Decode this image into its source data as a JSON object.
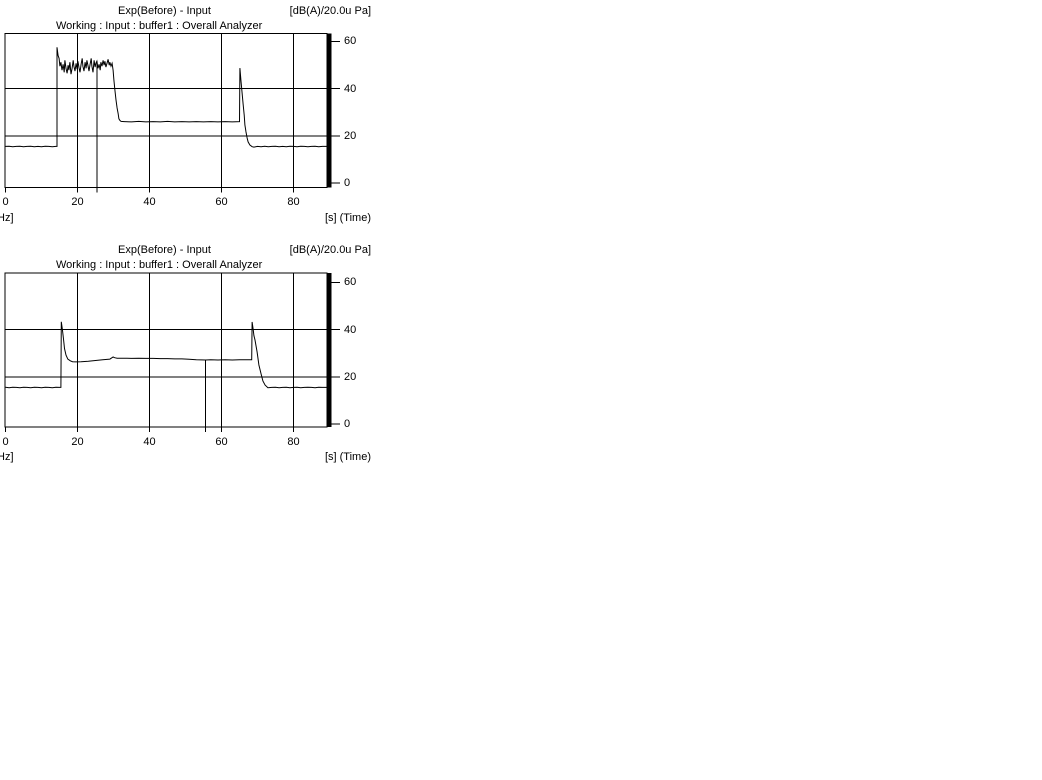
{
  "window": {
    "background": "#ffffff",
    "foreground": "#000000",
    "line_color": "#000000"
  },
  "chart_data": [
    {
      "type": "line",
      "title": "Exp(Before) - Input",
      "unit": "[dB(A)/20.0u Pa]",
      "subtitle": "Working : Input : buffer1 : Overall Analyzer",
      "xlabel": "[s] (Time)",
      "xlabel_left_clipped": "Hz]",
      "xlim": [
        0,
        90
      ],
      "ylim": [
        0,
        60
      ],
      "x_ticks": [
        0,
        20,
        40,
        60,
        80
      ],
      "y_ticks": [
        60,
        40,
        20,
        0
      ],
      "x_tick_labels": [
        "0",
        "20",
        "40",
        "60",
        "80"
      ],
      "y_tick_labels": [
        "60",
        "40",
        "20",
        "0"
      ],
      "grid_x": [
        20,
        40,
        60,
        80
      ],
      "grid_y": [
        20,
        40
      ],
      "legend": "none",
      "cursor": {
        "time_s": 25.4,
        "value_db": 51.6
      },
      "series": [
        {
          "name": "Input",
          "points": [
            [
              0,
              15.5
            ],
            [
              1,
              15.6
            ],
            [
              2,
              15.4
            ],
            [
              3,
              15.5
            ],
            [
              4,
              15.6
            ],
            [
              5,
              15.4
            ],
            [
              6,
              15.5
            ],
            [
              7,
              15.6
            ],
            [
              8,
              15.4
            ],
            [
              9,
              15.5
            ],
            [
              10,
              15.4
            ],
            [
              11,
              15.6
            ],
            [
              12,
              15.5
            ],
            [
              13,
              15.4
            ],
            [
              14,
              15.5
            ],
            [
              14.3,
              15.5
            ],
            [
              14.3,
              57.5
            ],
            [
              14.6,
              54
            ],
            [
              14.9,
              52.8
            ],
            [
              15.1,
              49.5
            ],
            [
              15.4,
              51.2
            ],
            [
              15.7,
              47.8
            ],
            [
              16,
              50.3
            ],
            [
              16.3,
              46.9
            ],
            [
              16.5,
              52
            ],
            [
              16.8,
              48.6
            ],
            [
              17.1,
              46.5
            ],
            [
              17.4,
              49.9
            ],
            [
              17.6,
              47.8
            ],
            [
              17.9,
              51.2
            ],
            [
              18.2,
              46.1
            ],
            [
              18.5,
              48.6
            ],
            [
              18.8,
              52
            ],
            [
              19,
              49.5
            ],
            [
              19.3,
              47.4
            ],
            [
              19.6,
              50.7
            ],
            [
              19.9,
              48.2
            ],
            [
              20.1,
              51.6
            ],
            [
              20.4,
              49.1
            ],
            [
              20.7,
              46.9
            ],
            [
              21,
              50.3
            ],
            [
              21.3,
              52.8
            ],
            [
              21.5,
              49.5
            ],
            [
              21.8,
              47.4
            ],
            [
              22.1,
              51.2
            ],
            [
              22.4,
              48.6
            ],
            [
              22.6,
              52
            ],
            [
              22.9,
              49.9
            ],
            [
              23.2,
              47.4
            ],
            [
              23.5,
              50.3
            ],
            [
              23.8,
              52.8
            ],
            [
              24,
              49.5
            ],
            [
              24.3,
              46.9
            ],
            [
              24.6,
              52
            ],
            [
              24.9,
              49.1
            ],
            [
              25.1,
              50.7
            ],
            [
              25.4,
              51.6
            ],
            [
              25.7,
              48.6
            ],
            [
              26,
              50.3
            ],
            [
              26.3,
              47.8
            ],
            [
              26.5,
              51.2
            ],
            [
              26.8,
              49.5
            ],
            [
              27.1,
              52
            ],
            [
              27.4,
              49.9
            ],
            [
              27.6,
              51.6
            ],
            [
              27.9,
              49.1
            ],
            [
              28.2,
              50.7
            ],
            [
              28.5,
              52.4
            ],
            [
              28.8,
              49.9
            ],
            [
              29,
              51.2
            ],
            [
              29.3,
              49.5
            ],
            [
              29.6,
              50.7
            ],
            [
              29.9,
              47.8
            ],
            [
              30.1,
              43.6
            ],
            [
              30.4,
              39.4
            ],
            [
              30.7,
              35.2
            ],
            [
              31,
              31.8
            ],
            [
              31.3,
              29.3
            ],
            [
              31.5,
              27.2
            ],
            [
              31.8,
              26.5
            ],
            [
              32.1,
              26.1
            ],
            [
              33,
              26
            ],
            [
              35,
              25.9
            ],
            [
              37,
              26.1
            ],
            [
              39,
              25.9
            ],
            [
              41,
              26
            ],
            [
              43,
              25.9
            ],
            [
              45,
              26.1
            ],
            [
              47,
              25.9
            ],
            [
              49,
              26
            ],
            [
              51,
              25.9
            ],
            [
              53,
              26
            ],
            [
              55,
              25.9
            ],
            [
              57,
              26
            ],
            [
              59,
              25.9
            ],
            [
              61,
              26
            ],
            [
              63,
              25.9
            ],
            [
              65,
              26
            ],
            [
              65.1,
              48.7
            ],
            [
              65.4,
              43.6
            ],
            [
              65.7,
              38.6
            ],
            [
              66,
              33.5
            ],
            [
              66.3,
              28.8
            ],
            [
              66.5,
              24.6
            ],
            [
              66.8,
              21.6
            ],
            [
              67.1,
              19.1
            ],
            [
              67.4,
              17.4
            ],
            [
              67.9,
              16.1
            ],
            [
              68.5,
              15.4
            ],
            [
              69,
              15.2
            ],
            [
              70,
              15.5
            ],
            [
              71,
              15.4
            ],
            [
              72,
              15.6
            ],
            [
              73,
              15.4
            ],
            [
              74,
              15.5
            ],
            [
              75,
              15.6
            ],
            [
              76,
              15.4
            ],
            [
              77,
              15.5
            ],
            [
              78,
              15.4
            ],
            [
              79,
              15.6
            ],
            [
              80,
              15.5
            ],
            [
              81,
              15.4
            ],
            [
              82,
              15.6
            ],
            [
              83,
              15.5
            ],
            [
              84,
              15.4
            ],
            [
              85,
              15.5
            ],
            [
              86,
              15.6
            ],
            [
              87,
              15.4
            ],
            [
              88,
              15.5
            ],
            [
              89.3,
              15.5
            ]
          ]
        }
      ]
    },
    {
      "type": "line",
      "title": "Exp(Before) - Input",
      "unit": "[dB(A)/20.0u Pa]",
      "subtitle": "Working : Input : buffer1 : Overall Analyzer",
      "xlabel": "[s] (Time)",
      "xlabel_left_clipped": "Hz]",
      "xlim": [
        0,
        90
      ],
      "ylim": [
        0,
        60
      ],
      "x_ticks": [
        0,
        20,
        40,
        60,
        80
      ],
      "y_ticks": [
        60,
        40,
        20,
        0
      ],
      "x_tick_labels": [
        "0",
        "20",
        "40",
        "60",
        "80"
      ],
      "y_tick_labels": [
        "60",
        "40",
        "20",
        "0"
      ],
      "grid_x": [
        20,
        40,
        60,
        80
      ],
      "grid_y": [
        20,
        40
      ],
      "legend": "none",
      "cursor": {
        "time_s": 55.6,
        "value_db": 27.1
      },
      "series": [
        {
          "name": "Input",
          "points": [
            [
              0,
              15.6
            ],
            [
              1,
              15.4
            ],
            [
              2,
              15.6
            ],
            [
              3,
              15.5
            ],
            [
              4,
              15.4
            ],
            [
              5,
              15.6
            ],
            [
              6,
              15.5
            ],
            [
              7,
              15.4
            ],
            [
              8,
              15.6
            ],
            [
              9,
              15.5
            ],
            [
              10,
              15.4
            ],
            [
              11,
              15.6
            ],
            [
              12,
              15.5
            ],
            [
              13,
              15.4
            ],
            [
              14,
              15.6
            ],
            [
              15,
              15.5
            ],
            [
              15.4,
              15.5
            ],
            [
              15.5,
              43.3
            ],
            [
              15.8,
              40
            ],
            [
              16.1,
              36
            ],
            [
              16.4,
              32
            ],
            [
              16.8,
              29.2
            ],
            [
              17.3,
              27.5
            ],
            [
              18,
              26.8
            ],
            [
              18.6,
              26.4
            ],
            [
              19.5,
              26.3
            ],
            [
              21,
              26.4
            ],
            [
              23,
              26.6
            ],
            [
              25,
              26.9
            ],
            [
              27,
              27.2
            ],
            [
              29,
              27.5
            ],
            [
              29.9,
              28.4
            ],
            [
              30.3,
              28.1
            ],
            [
              31,
              27.9
            ],
            [
              33,
              27.9
            ],
            [
              35,
              27.8
            ],
            [
              37,
              27.9
            ],
            [
              39,
              27.8
            ],
            [
              41,
              27.8
            ],
            [
              43,
              27.7
            ],
            [
              45,
              27.7
            ],
            [
              47,
              27.6
            ],
            [
              49,
              27.6
            ],
            [
              51,
              27.4
            ],
            [
              53,
              27.2
            ],
            [
              55.6,
              27.1
            ],
            [
              57,
              27.2
            ],
            [
              59,
              27.1
            ],
            [
              61,
              27.2
            ],
            [
              63,
              27.1
            ],
            [
              65,
              27.2
            ],
            [
              66.5,
              27.2
            ],
            [
              68.4,
              27.2
            ],
            [
              68.5,
              43.2
            ],
            [
              68.8,
              40
            ],
            [
              69,
              37.5
            ],
            [
              69.3,
              35.6
            ],
            [
              69.9,
              30.5
            ],
            [
              70.4,
              25
            ],
            [
              71,
              21.2
            ],
            [
              71.5,
              18.2
            ],
            [
              72.1,
              16.5
            ],
            [
              72.9,
              15.4
            ],
            [
              74,
              15.5
            ],
            [
              75,
              15.6
            ],
            [
              76,
              15.4
            ],
            [
              77,
              15.5
            ],
            [
              78,
              15.6
            ],
            [
              79,
              15.4
            ],
            [
              80,
              15.5
            ],
            [
              81,
              15.6
            ],
            [
              82,
              15.4
            ],
            [
              83,
              15.5
            ],
            [
              84,
              15.6
            ],
            [
              85,
              15.5
            ],
            [
              86,
              15.4
            ],
            [
              87,
              15.6
            ],
            [
              88,
              15.5
            ],
            [
              89.3,
              15.5
            ]
          ]
        }
      ]
    }
  ]
}
